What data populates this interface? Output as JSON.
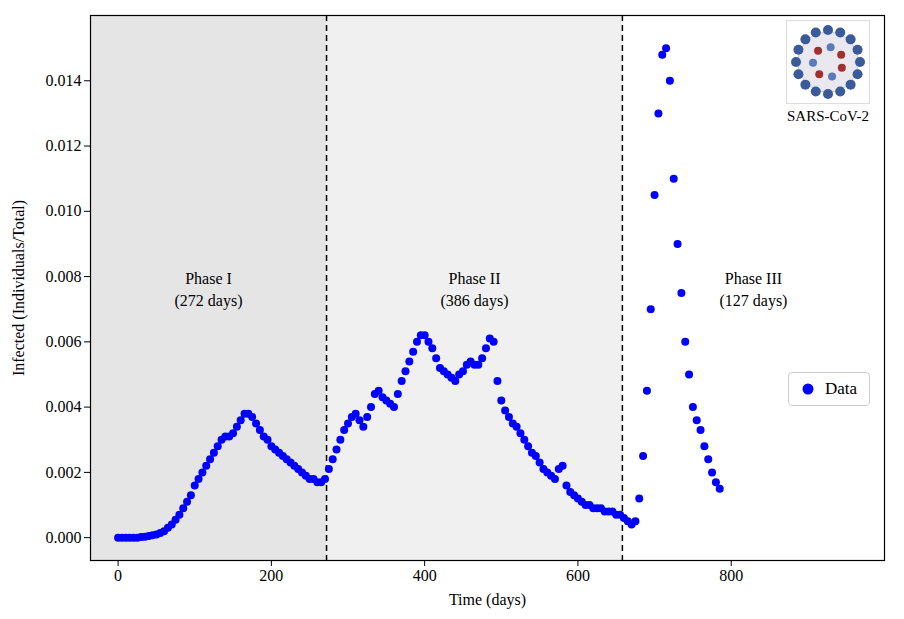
{
  "chart_data": {
    "type": "scatter",
    "x_label": "Time (days)",
    "y_label": "Infected (Individuals/Total)",
    "xlim": [
      -36,
      1000
    ],
    "xticks": [
      0,
      200,
      400,
      600,
      800
    ],
    "ylim": [
      -0.0007,
      0.016
    ],
    "yticks": [
      {
        "value": 0,
        "label": "0.000"
      },
      {
        "value": 0.002,
        "label": "0.002"
      },
      {
        "value": 0.004,
        "label": "0.004"
      },
      {
        "value": 0.006,
        "label": "0.006"
      },
      {
        "value": 0.008,
        "label": "0.008"
      },
      {
        "value": 0.01,
        "label": "0.010"
      },
      {
        "value": 0.012,
        "label": "0.012"
      },
      {
        "value": 0.014,
        "label": "0.014"
      }
    ],
    "legend": "right",
    "image_label": "SARS-CoV-2",
    "phase_boundaries": {
      "values": [
        272,
        658
      ],
      "line_style": "dashed",
      "color": "#000000"
    },
    "phases": [
      {
        "label": "Phase I",
        "duration_label": "(272 days)",
        "color": "#e5e5e5"
      },
      {
        "label": "Phase II",
        "duration_label": "(386 days)",
        "color": "#f0f0f0"
      },
      {
        "label": "Phase III",
        "duration_label": "(127 days)",
        "color": "#ffffff"
      }
    ],
    "series": [
      {
        "name": "Data",
        "color": "#0000ff",
        "marker": "circle",
        "x": [
          0,
          5,
          10,
          15,
          20,
          25,
          30,
          35,
          40,
          45,
          50,
          55,
          60,
          65,
          70,
          75,
          80,
          85,
          90,
          95,
          100,
          105,
          110,
          115,
          120,
          125,
          130,
          135,
          140,
          145,
          150,
          155,
          160,
          165,
          170,
          175,
          180,
          185,
          190,
          195,
          200,
          205,
          210,
          215,
          220,
          225,
          230,
          235,
          240,
          245,
          250,
          255,
          260,
          265,
          270,
          275,
          280,
          285,
          290,
          295,
          300,
          305,
          310,
          315,
          320,
          325,
          330,
          335,
          340,
          345,
          350,
          355,
          360,
          365,
          370,
          375,
          380,
          385,
          390,
          395,
          400,
          405,
          410,
          415,
          420,
          425,
          430,
          435,
          440,
          445,
          450,
          455,
          460,
          465,
          470,
          475,
          480,
          485,
          490,
          495,
          500,
          505,
          510,
          515,
          520,
          525,
          530,
          535,
          540,
          545,
          550,
          555,
          560,
          565,
          570,
          575,
          580,
          585,
          590,
          595,
          600,
          605,
          610,
          615,
          620,
          625,
          630,
          635,
          640,
          645,
          650,
          655,
          660,
          665,
          670,
          675,
          680,
          685,
          690,
          695,
          700,
          705,
          710,
          715,
          720,
          725,
          730,
          735,
          740,
          745,
          750,
          755,
          760,
          765,
          770,
          775,
          780,
          785
        ],
        "values": [
          0,
          0,
          0,
          0,
          0,
          0,
          2e-05,
          3e-05,
          5e-05,
          7e-05,
          0.0001,
          0.00014,
          0.0002,
          0.0003,
          0.0004,
          0.00055,
          0.0007,
          0.0009,
          0.0011,
          0.0013,
          0.0016,
          0.0018,
          0.002,
          0.0022,
          0.0024,
          0.0026,
          0.0028,
          0.003,
          0.0031,
          0.0031,
          0.0032,
          0.0034,
          0.0036,
          0.0038,
          0.0038,
          0.0037,
          0.0035,
          0.0033,
          0.0031,
          0.003,
          0.0028,
          0.0027,
          0.0026,
          0.0025,
          0.0024,
          0.0023,
          0.0022,
          0.0021,
          0.002,
          0.0019,
          0.0018,
          0.0018,
          0.0017,
          0.0017,
          0.0018,
          0.0021,
          0.0024,
          0.0027,
          0.003,
          0.0033,
          0.0035,
          0.0037,
          0.0038,
          0.0036,
          0.0034,
          0.0037,
          0.004,
          0.0044,
          0.0045,
          0.0043,
          0.0042,
          0.0041,
          0.004,
          0.0044,
          0.0048,
          0.0051,
          0.0054,
          0.0057,
          0.006,
          0.0062,
          0.0062,
          0.006,
          0.0058,
          0.0055,
          0.0052,
          0.0051,
          0.005,
          0.0049,
          0.0048,
          0.005,
          0.0051,
          0.0053,
          0.0054,
          0.0053,
          0.0053,
          0.0055,
          0.0058,
          0.0061,
          0.006,
          0.0048,
          0.0042,
          0.0039,
          0.0037,
          0.0035,
          0.0034,
          0.0032,
          0.003,
          0.0028,
          0.0026,
          0.0025,
          0.0023,
          0.0021,
          0.002,
          0.0019,
          0.0018,
          0.0021,
          0.0022,
          0.0016,
          0.0014,
          0.0013,
          0.0012,
          0.0011,
          0.001,
          0.001,
          0.0009,
          0.0009,
          0.0009,
          0.0008,
          0.0008,
          0.0008,
          0.0007,
          0.0007,
          0.0006,
          0.0005,
          0.0004,
          0.0005,
          0.0012,
          0.0025,
          0.0045,
          0.007,
          0.0105,
          0.013,
          0.0148,
          0.015,
          0.014,
          0.011,
          0.009,
          0.0075,
          0.006,
          0.005,
          0.004,
          0.0036,
          0.0033,
          0.0028,
          0.0024,
          0.002,
          0.0017,
          0.0015
        ]
      }
    ]
  }
}
